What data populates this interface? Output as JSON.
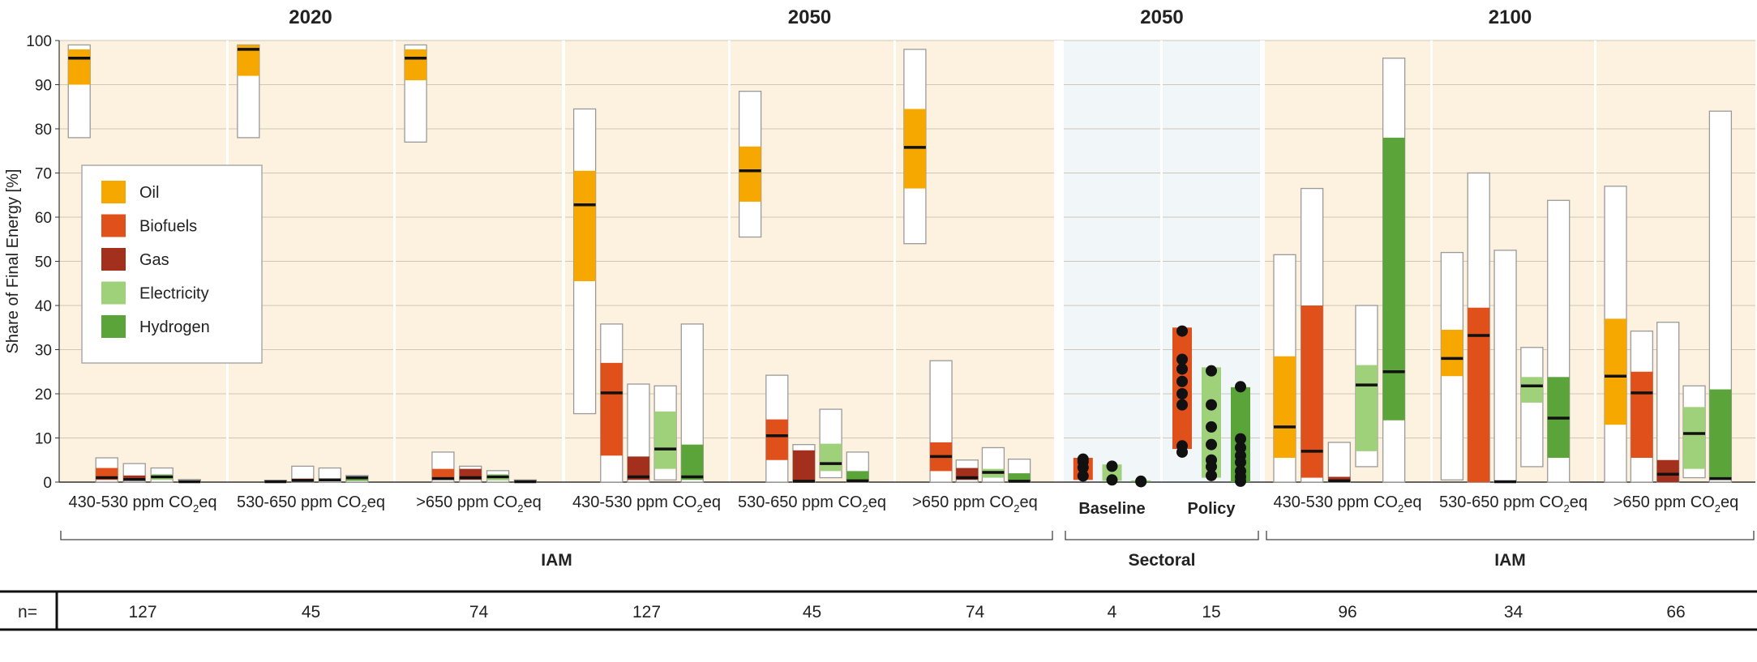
{
  "chart_data": {
    "type": "bar",
    "ylabel": "Share of Final Energy [%]",
    "ylim": [
      0,
      100
    ],
    "yticks": [
      0,
      10,
      20,
      30,
      40,
      50,
      60,
      70,
      80,
      90,
      100
    ],
    "grid": true,
    "legend_position": "upper-left",
    "legend": [
      {
        "name": "Oil",
        "color": "#f6a800"
      },
      {
        "name": "Biofuels",
        "color": "#e0501a"
      },
      {
        "name": "Gas",
        "color": "#a3301c"
      },
      {
        "name": "Electricity",
        "color": "#9fd07a"
      },
      {
        "name": "Hydrogen",
        "color": "#5aa43a"
      }
    ],
    "years": [
      {
        "label": "2020",
        "panels": [
          0,
          2
        ]
      },
      {
        "label": "2050",
        "panels": [
          3,
          5
        ]
      },
      {
        "label": "2050",
        "panels": [
          6,
          7
        ]
      },
      {
        "label": "2100",
        "panels": [
          8,
          10
        ]
      }
    ],
    "groups": [
      {
        "label": "IAM",
        "panels": [
          0,
          5
        ]
      },
      {
        "label": "Sectoral",
        "panels": [
          6,
          7
        ]
      },
      {
        "label": "IAM",
        "panels": [
          8,
          10
        ]
      }
    ],
    "n_label": "n=",
    "panels": [
      {
        "label": "430-530 ppm CO",
        "sub": "2",
        "suffix": "eq",
        "n": "127",
        "bg": "peach",
        "bars": [
          {
            "carrier": "Oil",
            "min": 78,
            "max": 99,
            "q1": 90,
            "q3": 98,
            "median": 96
          },
          {
            "carrier": "Biofuels",
            "min": 0,
            "max": 5.5,
            "q1": 0.5,
            "q3": 3.2,
            "median": 1.0
          },
          {
            "carrier": "Gas",
            "min": 0,
            "max": 4.2,
            "q1": 0.3,
            "q3": 1.5,
            "median": 0.6
          },
          {
            "carrier": "Electricity",
            "min": 0,
            "max": 3.2,
            "q1": 0.5,
            "q3": 1.8,
            "median": 1.2
          },
          {
            "carrier": "Hydrogen",
            "min": 0,
            "max": 0.6,
            "q1": 0,
            "q3": 0.3,
            "median": 0.1
          }
        ]
      },
      {
        "label": "530-650 ppm CO",
        "sub": "2",
        "suffix": "eq",
        "n": "45",
        "bg": "peach",
        "bars": [
          {
            "carrier": "Oil",
            "min": 78,
            "max": 99,
            "q1": 92,
            "q3": 99,
            "median": 98
          },
          {
            "carrier": "Biofuels",
            "min": 0,
            "max": 0.4,
            "q1": 0,
            "q3": 0.2,
            "median": 0.1
          },
          {
            "carrier": "Gas",
            "min": 0,
            "max": 3.6,
            "q1": 0.2,
            "q3": 0.8,
            "median": 0.4
          },
          {
            "carrier": "Electricity",
            "min": 0,
            "max": 3.2,
            "q1": 0.3,
            "q3": 0.8,
            "median": 0.5
          },
          {
            "carrier": "Hydrogen",
            "min": 0,
            "max": 1.5,
            "q1": 0.3,
            "q3": 1.2,
            "median": 1.0
          }
        ]
      },
      {
        "label": ">650 ppm CO",
        "sub": "2",
        "suffix": "eq",
        "n": "74",
        "bg": "peach",
        "bars": [
          {
            "carrier": "Oil",
            "min": 77,
            "max": 99,
            "q1": 91,
            "q3": 98,
            "median": 96
          },
          {
            "carrier": "Biofuels",
            "min": 0,
            "max": 6.8,
            "q1": 0.5,
            "q3": 3.0,
            "median": 0.8
          },
          {
            "carrier": "Gas",
            "min": 0,
            "max": 3.6,
            "q1": 0.5,
            "q3": 3.0,
            "median": 1.0
          },
          {
            "carrier": "Electricity",
            "min": 0,
            "max": 2.6,
            "q1": 0.4,
            "q3": 1.8,
            "median": 1.2
          },
          {
            "carrier": "Hydrogen",
            "min": 0,
            "max": 0.5,
            "q1": 0,
            "q3": 0.3,
            "median": 0.1
          }
        ]
      },
      {
        "label": "430-530 ppm CO",
        "sub": "2",
        "suffix": "eq",
        "n": "127",
        "bg": "peach",
        "bars": [
          {
            "carrier": "Oil",
            "min": 15.5,
            "max": 84.5,
            "q1": 45.5,
            "q3": 70.5,
            "median": 62.8
          },
          {
            "carrier": "Biofuels",
            "min": 0,
            "max": 35.8,
            "q1": 6.0,
            "q3": 27.0,
            "median": 20.2
          },
          {
            "carrier": "Gas",
            "min": 0,
            "max": 22.2,
            "q1": 0.5,
            "q3": 5.8,
            "median": 1.2
          },
          {
            "carrier": "Electricity",
            "min": 0.5,
            "max": 21.8,
            "q1": 3.0,
            "q3": 16.0,
            "median": 7.5
          },
          {
            "carrier": "Hydrogen",
            "min": 0,
            "max": 35.8,
            "q1": 0.5,
            "q3": 8.5,
            "median": 1.2
          }
        ]
      },
      {
        "label": "530-650 ppm CO",
        "sub": "2",
        "suffix": "eq",
        "n": "45",
        "bg": "peach",
        "bars": [
          {
            "carrier": "Oil",
            "min": 55.5,
            "max": 88.5,
            "q1": 63.5,
            "q3": 76.0,
            "median": 70.5
          },
          {
            "carrier": "Biofuels",
            "min": 0,
            "max": 24.2,
            "q1": 5.0,
            "q3": 14.2,
            "median": 10.5
          },
          {
            "carrier": "Gas",
            "min": 0,
            "max": 8.5,
            "q1": 0,
            "q3": 7.2,
            "median": 0.2
          },
          {
            "carrier": "Electricity",
            "min": 1.0,
            "max": 16.5,
            "q1": 2.5,
            "q3": 8.7,
            "median": 4.2
          },
          {
            "carrier": "Hydrogen",
            "min": 0,
            "max": 6.8,
            "q1": 0,
            "q3": 2.5,
            "median": 0.3
          }
        ]
      },
      {
        "label": ">650 ppm CO",
        "sub": "2",
        "suffix": "eq",
        "n": "74",
        "bg": "peach",
        "bars": [
          {
            "carrier": "Oil",
            "min": 54.0,
            "max": 98.0,
            "q1": 66.5,
            "q3": 84.5,
            "median": 75.8
          },
          {
            "carrier": "Biofuels",
            "min": 0,
            "max": 27.5,
            "q1": 2.5,
            "q3": 9.0,
            "median": 5.8
          },
          {
            "carrier": "Gas",
            "min": 0,
            "max": 5.0,
            "q1": 0.5,
            "q3": 3.2,
            "median": 1.0
          },
          {
            "carrier": "Electricity",
            "min": 0,
            "max": 7.8,
            "q1": 1.0,
            "q3": 3.0,
            "median": 2.2
          },
          {
            "carrier": "Hydrogen",
            "min": 0,
            "max": 5.2,
            "q1": 0,
            "q3": 2.0,
            "median": 0.2
          }
        ]
      },
      {
        "label": "Baseline",
        "n": "4",
        "bg": "blue",
        "bars": [
          {
            "carrier": "Biofuels",
            "q1": 0.5,
            "q3": 5.5,
            "points": [
              5.2,
              4.6,
              3.3,
              1.4
            ]
          },
          {
            "carrier": "Electricity",
            "q1": 0.3,
            "q3": 4.0,
            "points": [
              3.6,
              0.5
            ]
          },
          {
            "carrier": "Hydrogen",
            "q1": 0,
            "q3": 0.3,
            "points": [
              0.2,
              0.1
            ]
          }
        ]
      },
      {
        "label": "Policy",
        "n": "15",
        "bg": "blue",
        "bars": [
          {
            "carrier": "Biofuels",
            "q1": 7.5,
            "q3": 35.0,
            "points": [
              34.2,
              27.8,
              25.6,
              22.8,
              20.0,
              17.5,
              8.2,
              6.8
            ]
          },
          {
            "carrier": "Electricity",
            "q1": 1.0,
            "q3": 26.0,
            "points": [
              25.2,
              17.5,
              12.5,
              8.5,
              5.0,
              3.5,
              1.5
            ]
          },
          {
            "carrier": "Hydrogen",
            "q1": 0,
            "q3": 21.5,
            "points": [
              21.6,
              9.8,
              7.8,
              6.0,
              4.5,
              2.5,
              1.2,
              0.2
            ]
          }
        ]
      },
      {
        "label": "430-530 ppm CO",
        "sub": "2",
        "suffix": "eq",
        "n": "96",
        "bg": "peach",
        "bars": [
          {
            "carrier": "Oil",
            "min": 0,
            "max": 51.5,
            "q1": 5.5,
            "q3": 28.5,
            "median": 12.5
          },
          {
            "carrier": "Biofuels",
            "min": 0,
            "max": 66.5,
            "q1": 1.0,
            "q3": 40.0,
            "median": 7.0
          },
          {
            "carrier": "Gas",
            "min": 0,
            "max": 9.0,
            "q1": 0,
            "q3": 1.2,
            "median": 0.3
          },
          {
            "carrier": "Electricity",
            "min": 3.5,
            "max": 40.0,
            "q1": 7.0,
            "q3": 26.5,
            "median": 22.0
          },
          {
            "carrier": "Hydrogen",
            "min": 0,
            "max": 96.0,
            "q1": 14.0,
            "q3": 78.0,
            "median": 25.0
          }
        ]
      },
      {
        "label": "530-650 ppm CO",
        "sub": "2",
        "suffix": "eq",
        "n": "34",
        "bg": "peach",
        "bars": [
          {
            "carrier": "Oil",
            "min": 0.5,
            "max": 52.0,
            "q1": 24.0,
            "q3": 34.5,
            "median": 28.0
          },
          {
            "carrier": "Biofuels",
            "min": 0,
            "max": 70.0,
            "q1": 0,
            "q3": 39.5,
            "median": 33.2
          },
          {
            "carrier": "Gas",
            "min": 0,
            "max": 52.5,
            "q1": 0,
            "q3": 0.3,
            "median": 0.1
          },
          {
            "carrier": "Electricity",
            "min": 3.5,
            "max": 30.5,
            "q1": 18.0,
            "q3": 23.8,
            "median": 21.8
          },
          {
            "carrier": "Hydrogen",
            "min": 0,
            "max": 63.8,
            "q1": 5.5,
            "q3": 23.8,
            "median": 14.5
          }
        ]
      },
      {
        "label": ">650 ppm CO",
        "sub": "2",
        "suffix": "eq",
        "n": "66",
        "bg": "peach",
        "bars": [
          {
            "carrier": "Oil",
            "min": 0,
            "max": 67.0,
            "q1": 13.0,
            "q3": 37.0,
            "median": 24.0
          },
          {
            "carrier": "Biofuels",
            "min": 0,
            "max": 34.2,
            "q1": 5.5,
            "q3": 25.0,
            "median": 20.2
          },
          {
            "carrier": "Gas",
            "min": 0,
            "max": 36.2,
            "q1": 0,
            "q3": 5.0,
            "median": 1.8
          },
          {
            "carrier": "Electricity",
            "min": 1.0,
            "max": 21.8,
            "q1": 3.0,
            "q3": 17.0,
            "median": 11.0
          },
          {
            "carrier": "Hydrogen",
            "min": 0,
            "max": 84.0,
            "q1": 0.5,
            "q3": 21.0,
            "median": 0.8
          }
        ]
      }
    ]
  }
}
